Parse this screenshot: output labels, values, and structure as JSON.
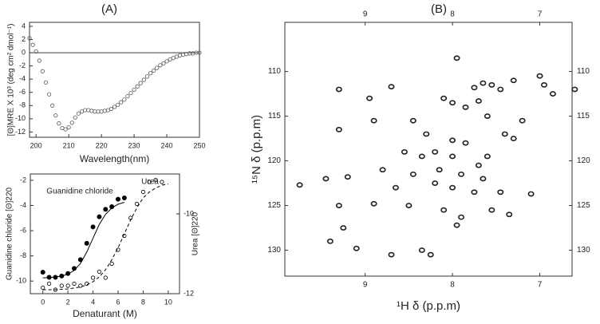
{
  "panel_labels": [
    "(A)",
    "(B)"
  ],
  "chart_data": [
    {
      "type": "scatter",
      "xlabel": "Wavelength(nm)",
      "ylabel": "[Θ]MRE X 10³ (deg cm² dmol⁻¹)",
      "xlim": [
        198,
        250
      ],
      "ylim": [
        -12.8,
        4.6
      ],
      "xticks": [
        200,
        210,
        220,
        230,
        240,
        250
      ],
      "yticks": [
        4,
        2,
        0,
        -2,
        -4,
        -6,
        -8,
        -10,
        -12
      ],
      "zero_line": true,
      "series": [
        {
          "marker": "open",
          "color": "#555555",
          "x": [
            198,
            199,
            200,
            201,
            202,
            203,
            204,
            205,
            206,
            207,
            208,
            209,
            210,
            211,
            212,
            213,
            214,
            215,
            216,
            217,
            218,
            219,
            220,
            221,
            222,
            223,
            224,
            225,
            226,
            227,
            228,
            229,
            230,
            231,
            232,
            233,
            234,
            235,
            236,
            237,
            238,
            239,
            240,
            241,
            242,
            243,
            244,
            245,
            246,
            247,
            248,
            249,
            250
          ],
          "values": [
            2.2,
            1.2,
            0.2,
            -1.2,
            -2.8,
            -4.5,
            -6.3,
            -8.0,
            -9.5,
            -10.7,
            -11.4,
            -11.6,
            -11.3,
            -10.6,
            -9.8,
            -9.2,
            -8.9,
            -8.7,
            -8.7,
            -8.8,
            -8.9,
            -8.9,
            -8.9,
            -8.8,
            -8.7,
            -8.5,
            -8.2,
            -7.9,
            -7.5,
            -7.1,
            -6.6,
            -6.1,
            -5.6,
            -5.1,
            -4.6,
            -4.1,
            -3.6,
            -3.1,
            -2.7,
            -2.3,
            -1.9,
            -1.6,
            -1.3,
            -1.0,
            -0.8,
            -0.6,
            -0.4,
            -0.3,
            -0.2,
            -0.1,
            -0.1,
            0,
            0
          ]
        }
      ]
    },
    {
      "type": "scatter",
      "xlabel": "Denaturant (M)",
      "ylabel": "Guanidine chloride [Θ]220",
      "y2label": "Urea [Θ]220",
      "xlim": [
        -1,
        10.9
      ],
      "ylim": [
        -11,
        -1.5
      ],
      "y2lim": [
        -12,
        -9
      ],
      "xticks": [
        0,
        2,
        4,
        6,
        8,
        10
      ],
      "yticks": [
        -2,
        -4,
        -6,
        -8,
        -10
      ],
      "y2ticks": [
        -10,
        -12
      ],
      "series": [
        {
          "name": "Guanidine chloride",
          "marker": "filled",
          "color": "#000000",
          "x": [
            0,
            0.5,
            1,
            1.5,
            2,
            2.5,
            3,
            3.5,
            4,
            4.5,
            5,
            5.5,
            6,
            6.5
          ],
          "values": [
            -9.3,
            -9.7,
            -9.7,
            -9.6,
            -9.4,
            -9.0,
            -8.3,
            -7.0,
            -5.7,
            -4.9,
            -4.3,
            -4.1,
            -3.5,
            -3.4
          ]
        },
        {
          "style": "solid",
          "color": "#000000",
          "x": [
            0,
            0.5,
            1,
            1.5,
            2,
            2.5,
            3,
            3.5,
            4,
            4.5,
            5,
            5.5,
            6,
            6.5
          ],
          "values": [
            -9.75,
            -9.72,
            -9.68,
            -9.6,
            -9.45,
            -9.15,
            -8.6,
            -7.7,
            -6.6,
            -5.5,
            -4.7,
            -4.2,
            -3.9,
            -3.75
          ]
        },
        {
          "name": "Urea",
          "marker": "open",
          "color": "#000000",
          "axis": "y2",
          "x": [
            0,
            0.5,
            1,
            1.5,
            2,
            2.5,
            3,
            3.5,
            4,
            4.5,
            5,
            5.5,
            6,
            6.5,
            7,
            7.5,
            8,
            8.5,
            9,
            9.5
          ],
          "values": [
            -11.85,
            -11.75,
            -11.9,
            -11.8,
            -11.8,
            -11.75,
            -11.8,
            -11.75,
            -11.6,
            -11.45,
            -11.6,
            -11.25,
            -10.9,
            -10.55,
            -10.1,
            -9.75,
            -9.45,
            -9.2,
            -9.15,
            -9.2
          ]
        },
        {
          "style": "dashed",
          "color": "#000000",
          "axis": "y2",
          "x": [
            0,
            0.5,
            1,
            1.5,
            2,
            2.5,
            3,
            3.5,
            4,
            4.5,
            5,
            5.5,
            6,
            6.5,
            7,
            7.5,
            8,
            8.5,
            9,
            9.5,
            10
          ],
          "values": [
            -11.9,
            -11.9,
            -11.9,
            -11.89,
            -11.88,
            -11.86,
            -11.83,
            -11.78,
            -11.7,
            -11.58,
            -11.4,
            -11.15,
            -10.85,
            -10.5,
            -10.15,
            -9.85,
            -9.6,
            -9.45,
            -9.35,
            -9.28,
            -9.25
          ]
        }
      ]
    },
    {
      "type": "scatter",
      "xlabel": "¹H δ (p.p.m)",
      "ylabel": "¹⁵N δ (p.p.m)",
      "xlim": [
        9.92,
        6.63
      ],
      "ylim": [
        104.5,
        132.9
      ],
      "y_inverted": true,
      "mirror_ticks": true,
      "xticks": [
        9,
        8,
        7
      ],
      "yticks": [
        110,
        115,
        120,
        125,
        130
      ],
      "series": [
        {
          "marker": "peak",
          "color": "#222222",
          "x": [
            7.55,
            7.65,
            7.45,
            6.95,
            6.85,
            6.6,
            7.0,
            7.75,
            7.3,
            7.7,
            9.3,
            8.7,
            7.95,
            8.1,
            8.0,
            7.85,
            8.45,
            7.6,
            8.9,
            9.3,
            8.3,
            8.0,
            7.85,
            7.4,
            7.3,
            8.55,
            8.35,
            8.2,
            8.0,
            7.6,
            7.7,
            8.15,
            7.9,
            8.45,
            8.8,
            9.2,
            9.45,
            9.75,
            8.2,
            8.0,
            7.75,
            7.45,
            8.65,
            7.1,
            8.9,
            8.5,
            9.3,
            7.9,
            8.1,
            7.55,
            7.95,
            9.25,
            9.4,
            9.1,
            8.35,
            8.25,
            8.7,
            7.35,
            7.65,
            7.2,
            8.95
          ],
          "values": [
            111.5,
            111.3,
            112,
            111.5,
            112.5,
            112,
            110.5,
            111.8,
            111.0,
            113.3,
            112,
            111.7,
            108.5,
            113,
            113.5,
            114,
            115.5,
            115,
            115.5,
            116.5,
            117,
            117.7,
            118,
            117,
            117.5,
            119,
            119.5,
            119,
            119.5,
            119.5,
            120.5,
            121,
            121.5,
            121.5,
            121,
            121.8,
            122,
            122.7,
            122.5,
            123,
            123.5,
            123.5,
            123,
            123.7,
            124.8,
            125,
            125,
            126.3,
            125.5,
            125.5,
            127.2,
            127.5,
            129,
            129.8,
            130,
            130.5,
            130.5,
            126,
            122,
            115.5,
            113
          ]
        }
      ]
    }
  ]
}
